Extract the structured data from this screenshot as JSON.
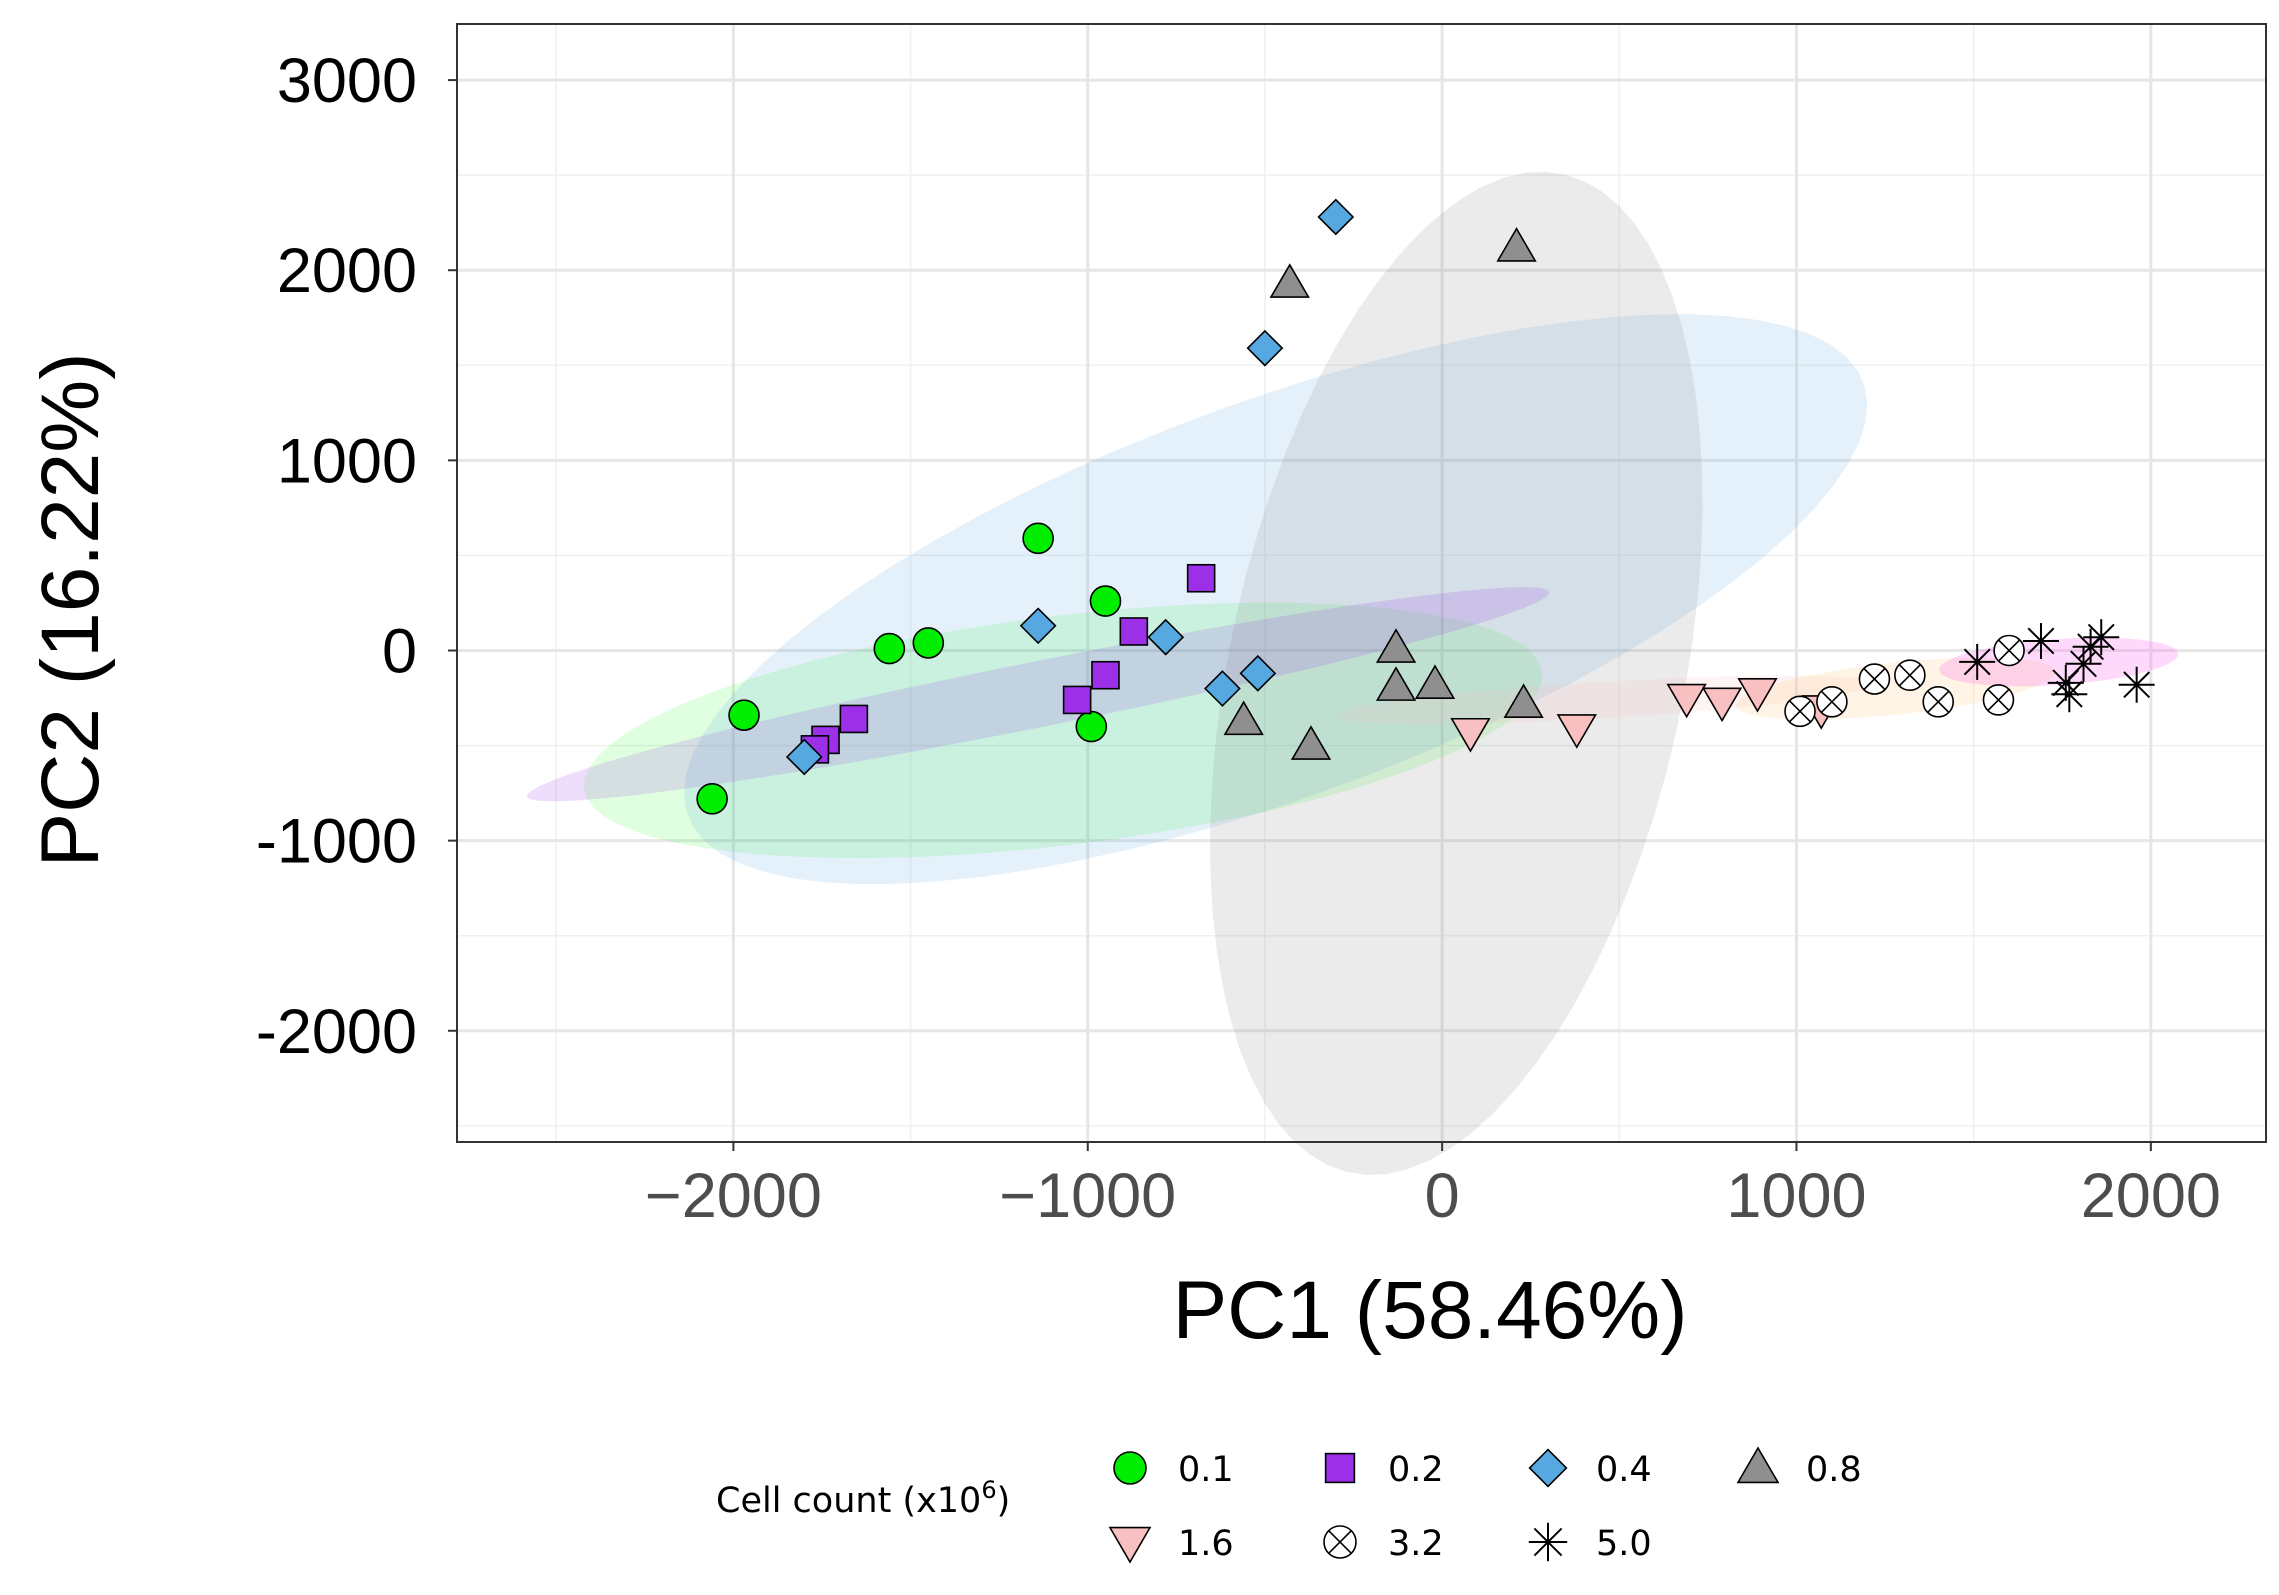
{
  "chart_data": {
    "type": "scatter",
    "title": "",
    "xlabel": "PC1 (58.46%)",
    "ylabel": "PC2 (16.22%)",
    "xlim": [
      -2780,
      2325
    ],
    "ylim": [
      -2585,
      3295
    ],
    "x_ticks": [
      {
        "value": -2000,
        "label": "−2000"
      },
      {
        "value": -1000,
        "label": "−1000"
      },
      {
        "value": 0,
        "label": "0"
      },
      {
        "value": 1000,
        "label": "1000"
      },
      {
        "value": 2000,
        "label": "2000"
      }
    ],
    "y_ticks": [
      {
        "value": 3000,
        "label": "3000"
      },
      {
        "value": 2000,
        "label": "2000"
      },
      {
        "value": 1000,
        "label": "1000"
      },
      {
        "value": 0,
        "label": "0"
      },
      {
        "value": -1000,
        "label": "-1000"
      },
      {
        "value": -2000,
        "label": "-2000"
      }
    ],
    "grid": true,
    "legend_position": "bottom",
    "legend": {
      "title_prefix": "Cell count (x10",
      "title_superscript": "6",
      "title_suffix": ")"
    },
    "series": [
      {
        "name": "0.1",
        "marker": "circle",
        "color": "#00ee00",
        "ellipse_color": "#00ff00",
        "points": [
          [
            -1140,
            590
          ],
          [
            -950,
            260
          ],
          [
            -1450,
            40
          ],
          [
            -1560,
            10
          ],
          [
            -1970,
            -340
          ],
          [
            -2060,
            -780
          ],
          [
            -990,
            -400
          ]
        ]
      },
      {
        "name": "0.2",
        "marker": "square",
        "color": "#9b30e8",
        "ellipse_color": "#9b30e8",
        "points": [
          [
            -680,
            380
          ],
          [
            -870,
            100
          ],
          [
            -950,
            -130
          ],
          [
            -1030,
            -260
          ],
          [
            -1660,
            -360
          ],
          [
            -1740,
            -470
          ],
          [
            -1770,
            -520
          ]
        ]
      },
      {
        "name": "0.4",
        "marker": "diamond",
        "color": "#56a8e0",
        "ellipse_color": "#56a8e0",
        "points": [
          [
            -300,
            2280
          ],
          [
            -500,
            1590
          ],
          [
            -1140,
            130
          ],
          [
            -780,
            70
          ],
          [
            -620,
            -200
          ],
          [
            -520,
            -120
          ],
          [
            -1800,
            -560
          ]
        ]
      },
      {
        "name": "0.8",
        "marker": "triangle-up",
        "color": "#8f8f8f",
        "ellipse_color": "#8f8f8f",
        "points": [
          [
            -430,
            1930
          ],
          [
            210,
            2120
          ],
          [
            -130,
            10
          ],
          [
            -130,
            -190
          ],
          [
            -20,
            -180
          ],
          [
            230,
            -280
          ],
          [
            -560,
            -370
          ],
          [
            -370,
            -500
          ]
        ]
      },
      {
        "name": "1.6",
        "marker": "triangle-down",
        "color": "#f8c0c0",
        "ellipse_color": "#f8c0c0",
        "points": [
          [
            80,
            -430
          ],
          [
            380,
            -410
          ],
          [
            690,
            -250
          ],
          [
            790,
            -270
          ],
          [
            890,
            -220
          ],
          [
            1070,
            -310
          ]
        ]
      },
      {
        "name": "3.2",
        "marker": "circle-x",
        "color": "#ffffff",
        "ellipse_color": "#ffcc88",
        "points": [
          [
            1010,
            -320
          ],
          [
            1100,
            -270
          ],
          [
            1220,
            -150
          ],
          [
            1320,
            -130
          ],
          [
            1400,
            -270
          ],
          [
            1570,
            -260
          ],
          [
            1600,
            0
          ]
        ]
      },
      {
        "name": "5.0",
        "marker": "asterisk",
        "color": "#000000",
        "ellipse_color": "#ff66ee",
        "points": [
          [
            1510,
            -60
          ],
          [
            1690,
            50
          ],
          [
            1760,
            -170
          ],
          [
            1770,
            -230
          ],
          [
            1810,
            -70
          ],
          [
            1830,
            20
          ],
          [
            1860,
            70
          ],
          [
            1960,
            -180
          ]
        ]
      }
    ],
    "ellipses": [
      {
        "series": "0.1",
        "cx": -1070,
        "cy": -420,
        "rx": 1390,
        "ry": 590,
        "angle_deg": 14.8,
        "opacity": 0.12
      },
      {
        "series": "0.4",
        "cx": -470,
        "cy": 270,
        "rx": 2060,
        "ry": 890,
        "angle_deg": 40.5,
        "opacity": 0.16
      },
      {
        "series": "0.8",
        "cx": 40,
        "cy": -120,
        "rx": 2650,
        "ry": 650,
        "angle_deg": 84.5,
        "opacity": 0.18
      },
      {
        "series": "0.2",
        "cx": -1140,
        "cy": -230,
        "rx": 1540,
        "ry": 165,
        "angle_deg": 20.6,
        "opacity": 0.16
      },
      {
        "series": "1.6",
        "cx": 460,
        "cy": -260,
        "rx": 760,
        "ry": 95,
        "angle_deg": 6.5,
        "opacity": 0.18
      },
      {
        "series": "3.2",
        "cx": 1280,
        "cy": -200,
        "rx": 460,
        "ry": 135,
        "angle_deg": 12.0,
        "opacity": 0.22
      },
      {
        "series": "5.0",
        "cx": 1740,
        "cy": -60,
        "rx": 340,
        "ry": 120,
        "angle_deg": 8.0,
        "opacity": 0.25
      }
    ]
  }
}
